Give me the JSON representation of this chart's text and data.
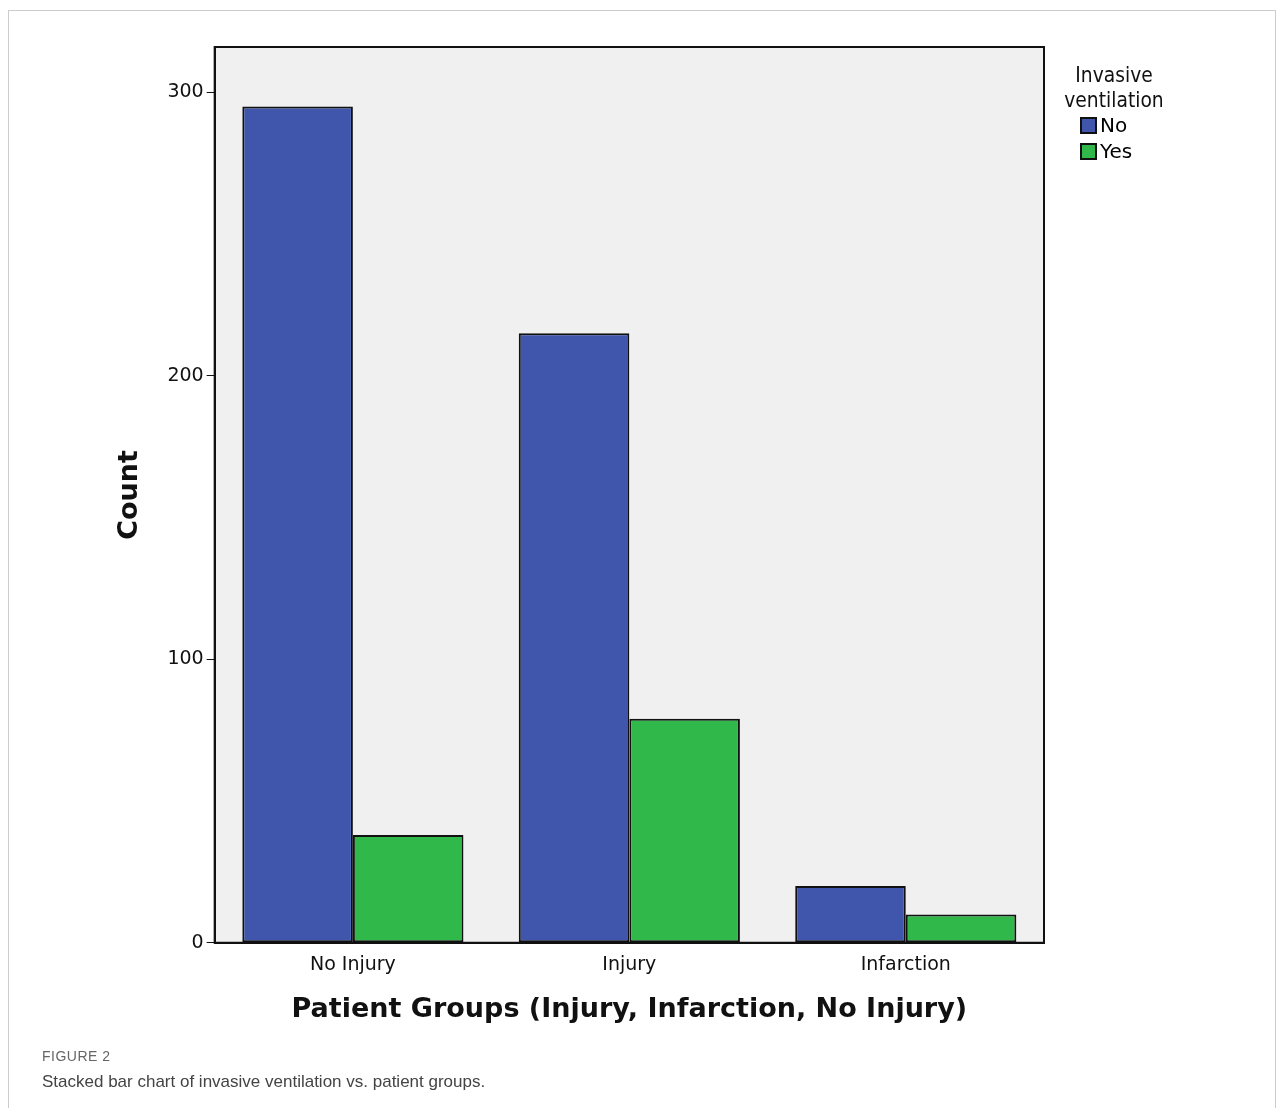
{
  "chart_data": {
    "type": "bar",
    "xlabel": "Patient Groups (Injury, Infarction, No Injury)",
    "ylabel": "Count",
    "legend_title": "Invasive ventilation",
    "categories": [
      "No Injury",
      "Injury",
      "Infarction"
    ],
    "series": [
      {
        "name": "No",
        "color": "#3f56ac",
        "values": [
          295,
          215,
          20
        ]
      },
      {
        "name": "Yes",
        "color": "#31b84a",
        "values": [
          38,
          79,
          10
        ]
      }
    ],
    "ylim": [
      0,
      316
    ],
    "yticks": [
      0,
      100,
      200,
      300
    ],
    "grid": false,
    "legend": "top right",
    "annotations": [
      "FIGURE 2",
      "Stacked bar chart of invasive ventilation vs. patient groups."
    ]
  }
}
